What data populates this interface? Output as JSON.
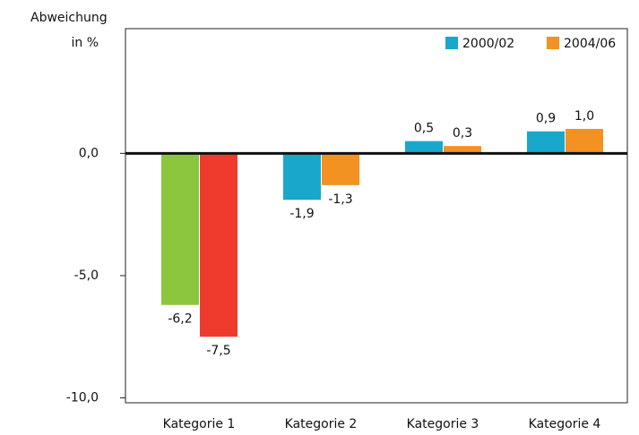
{
  "chart_data": {
    "type": "bar",
    "y_label": [
      "Abweichung",
      "in %"
    ],
    "categories": [
      "Kategorie 1",
      "Kategorie 2",
      "Kategorie 3",
      "Kategorie 4"
    ],
    "series": [
      {
        "name": "2000/02",
        "color": "#19a7cc",
        "colors": [
          "#8cc63e",
          "#19a7cc",
          "#19a7cc",
          "#19a7cc"
        ],
        "values": [
          -6.2,
          -1.9,
          0.5,
          0.9
        ],
        "value_labels": [
          "-6,2",
          "-1,9",
          "0,5",
          "0,9"
        ]
      },
      {
        "name": "2004/06",
        "color": "#f39123",
        "colors": [
          "#ee3b2d",
          "#f39123",
          "#f39123",
          "#f39123"
        ],
        "values": [
          -7.5,
          -1.3,
          0.3,
          1.0
        ],
        "value_labels": [
          "-7,5",
          "-1,3",
          "0,3",
          "1,0"
        ]
      }
    ],
    "ylim": [
      -10.2,
      5.1
    ],
    "yticks": [
      {
        "value": -10,
        "label": "-10,0"
      },
      {
        "value": -5,
        "label": "-5,0"
      },
      {
        "value": 0,
        "label": "0,0"
      }
    ],
    "legend": "top-right"
  }
}
